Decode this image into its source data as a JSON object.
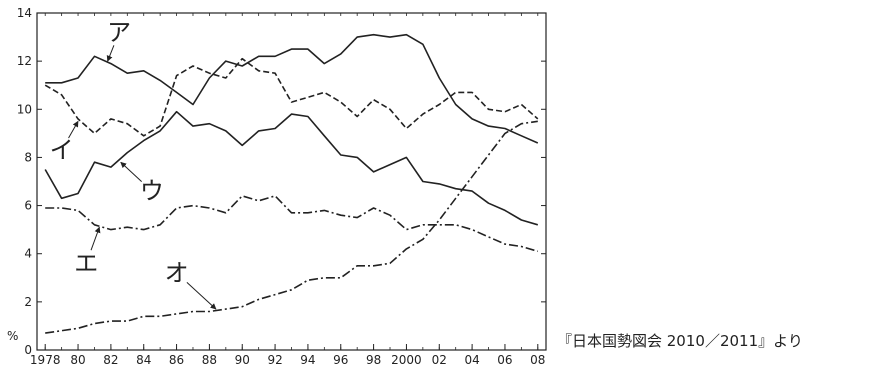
{
  "chart_data": {
    "type": "line",
    "x": [
      1978,
      1979,
      1980,
      1981,
      1982,
      1983,
      1984,
      1985,
      1986,
      1987,
      1988,
      1989,
      1990,
      1991,
      1992,
      1993,
      1994,
      1995,
      1996,
      1997,
      1998,
      1999,
      2000,
      2001,
      2002,
      2003,
      2004,
      2005,
      2006,
      2007,
      2008
    ],
    "x_tick_values": [
      1978,
      1980,
      1982,
      1984,
      1986,
      1988,
      1990,
      1992,
      1994,
      1996,
      1998,
      2000,
      2002,
      2004,
      2006,
      2008
    ],
    "x_tick_labels": [
      "1978",
      "80",
      "82",
      "84",
      "86",
      "88",
      "90",
      "92",
      "94",
      "96",
      "98",
      "2000",
      "02",
      "04",
      "06",
      "08"
    ],
    "y_ticks": [
      0,
      2,
      4,
      6,
      8,
      10,
      12,
      14
    ],
    "ylim": [
      0,
      14
    ],
    "xlim": [
      1977.5,
      2008.5
    ],
    "ylabel": "%",
    "grid": false,
    "series": [
      {
        "name": "ア",
        "style": "solid",
        "values": [
          11.1,
          11.1,
          11.3,
          12.2,
          11.9,
          11.5,
          11.6,
          11.2,
          10.7,
          10.2,
          11.3,
          12.0,
          11.8,
          12.2,
          12.2,
          12.5,
          12.5,
          11.9,
          12.3,
          13.0,
          13.1,
          13.0,
          13.1,
          12.7,
          11.3,
          10.2,
          9.6,
          9.3,
          9.2,
          8.9,
          8.6
        ]
      },
      {
        "name": "イ",
        "style": "dashed",
        "values": [
          11.0,
          10.6,
          9.6,
          9.0,
          9.6,
          9.4,
          8.9,
          9.3,
          11.4,
          11.8,
          11.5,
          11.3,
          12.1,
          11.6,
          11.5,
          10.3,
          10.5,
          10.7,
          10.3,
          9.7,
          10.4,
          10.0,
          9.2,
          9.8,
          10.2,
          10.7,
          10.7,
          10.0,
          9.9,
          10.2,
          9.6
        ]
      },
      {
        "name": "ウ",
        "style": "solid",
        "values": [
          7.5,
          6.3,
          6.5,
          7.8,
          7.6,
          8.2,
          8.7,
          9.1,
          9.9,
          9.3,
          9.4,
          9.1,
          8.5,
          9.1,
          9.2,
          9.8,
          9.7,
          8.9,
          8.1,
          8.0,
          7.4,
          7.7,
          8.0,
          7.0,
          6.9,
          6.7,
          6.6,
          6.1,
          5.8,
          5.4,
          5.2
        ]
      },
      {
        "name": "エ",
        "style": "dash-dot",
        "values": [
          5.9,
          5.9,
          5.8,
          5.2,
          5.0,
          5.1,
          5.0,
          5.2,
          5.9,
          6.0,
          5.9,
          5.7,
          6.4,
          6.2,
          6.4,
          5.7,
          5.7,
          5.8,
          5.6,
          5.5,
          5.9,
          5.6,
          5.0,
          5.2,
          5.2,
          5.2,
          5.0,
          4.7,
          4.4,
          4.3,
          4.1
        ]
      },
      {
        "name": "オ",
        "style": "dash-dot",
        "values": [
          0.7,
          0.8,
          0.9,
          1.1,
          1.2,
          1.2,
          1.4,
          1.4,
          1.5,
          1.6,
          1.6,
          1.7,
          1.8,
          2.1,
          2.3,
          2.5,
          2.9,
          3.0,
          3.0,
          3.5,
          3.5,
          3.6,
          4.2,
          4.6,
          5.4,
          6.3,
          7.2,
          8.1,
          9.0,
          9.4,
          9.5
        ]
      }
    ],
    "labels": [
      {
        "series": "ア",
        "text": "ア",
        "at": [
          1982.5,
          13.2
        ],
        "points_to": [
          1981.8,
          12.0
        ]
      },
      {
        "series": "イ",
        "text": "イ",
        "at": [
          1979.0,
          8.3
        ],
        "points_to": [
          1980.0,
          9.5
        ]
      },
      {
        "series": "ウ",
        "text": "ウ",
        "at": [
          1984.5,
          6.6
        ],
        "points_to": [
          1982.6,
          7.8
        ]
      },
      {
        "series": "エ",
        "text": "エ",
        "at": [
          1980.5,
          3.6
        ],
        "points_to": [
          1981.3,
          5.1
        ]
      },
      {
        "series": "オ",
        "text": "オ",
        "at": [
          1986.0,
          3.2
        ],
        "points_to": [
          1988.4,
          1.7
        ]
      }
    ]
  },
  "source_note": "『日本国勢図会 2010／2011』より"
}
